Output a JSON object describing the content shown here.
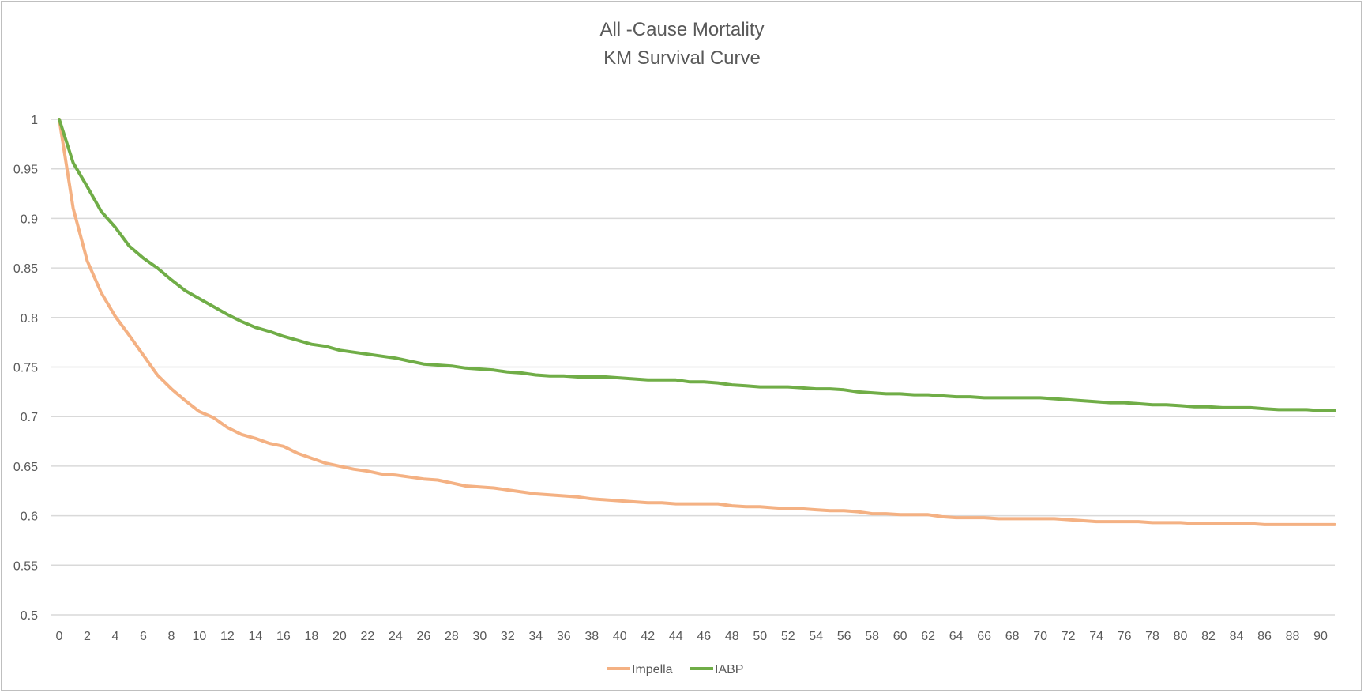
{
  "chart_data": {
    "type": "line",
    "title": "All -Cause Mortality",
    "subtitle": "KM Survival Curve",
    "xlabel": "",
    "ylabel": "",
    "ylim": [
      0.5,
      1
    ],
    "yticks": [
      "0.5",
      "0.55",
      "0.6",
      "0.65",
      "0.7",
      "0.75",
      "0.8",
      "0.85",
      "0.9",
      "0.95",
      "1"
    ],
    "xlim": [
      0,
      91
    ],
    "xtick_step": 2,
    "grid": true,
    "legend_position": "bottom",
    "series": [
      {
        "name": "Impella",
        "color": "#F4B183",
        "values": [
          1.0,
          0.91,
          0.857,
          0.825,
          0.801,
          0.782,
          0.762,
          0.742,
          0.728,
          0.716,
          0.705,
          0.699,
          0.689,
          0.682,
          0.678,
          0.673,
          0.67,
          0.663,
          0.658,
          0.653,
          0.65,
          0.647,
          0.645,
          0.642,
          0.641,
          0.639,
          0.637,
          0.636,
          0.633,
          0.63,
          0.629,
          0.628,
          0.626,
          0.624,
          0.622,
          0.621,
          0.62,
          0.619,
          0.617,
          0.616,
          0.615,
          0.614,
          0.613,
          0.613,
          0.612,
          0.612,
          0.612,
          0.612,
          0.61,
          0.609,
          0.609,
          0.608,
          0.607,
          0.607,
          0.606,
          0.605,
          0.605,
          0.604,
          0.602,
          0.602,
          0.601,
          0.601,
          0.601,
          0.599,
          0.598,
          0.598,
          0.598,
          0.597,
          0.597,
          0.597,
          0.597,
          0.597,
          0.596,
          0.595,
          0.594,
          0.594,
          0.594,
          0.594,
          0.593,
          0.593,
          0.593,
          0.592,
          0.592,
          0.592,
          0.592,
          0.592,
          0.591,
          0.591,
          0.591,
          0.591,
          0.591,
          0.591
        ]
      },
      {
        "name": "IABP",
        "color": "#70AD47",
        "values": [
          1.0,
          0.956,
          0.932,
          0.907,
          0.891,
          0.872,
          0.86,
          0.85,
          0.838,
          0.827,
          0.819,
          0.811,
          0.803,
          0.796,
          0.79,
          0.786,
          0.781,
          0.777,
          0.773,
          0.771,
          0.767,
          0.765,
          0.763,
          0.761,
          0.759,
          0.756,
          0.753,
          0.752,
          0.751,
          0.749,
          0.748,
          0.747,
          0.745,
          0.744,
          0.742,
          0.741,
          0.741,
          0.74,
          0.74,
          0.74,
          0.739,
          0.738,
          0.737,
          0.737,
          0.737,
          0.735,
          0.735,
          0.734,
          0.732,
          0.731,
          0.73,
          0.73,
          0.73,
          0.729,
          0.728,
          0.728,
          0.727,
          0.725,
          0.724,
          0.723,
          0.723,
          0.722,
          0.722,
          0.721,
          0.72,
          0.72,
          0.719,
          0.719,
          0.719,
          0.719,
          0.719,
          0.718,
          0.717,
          0.716,
          0.715,
          0.714,
          0.714,
          0.713,
          0.712,
          0.712,
          0.711,
          0.71,
          0.71,
          0.709,
          0.709,
          0.709,
          0.708,
          0.707,
          0.707,
          0.707,
          0.706,
          0.706
        ]
      }
    ]
  }
}
